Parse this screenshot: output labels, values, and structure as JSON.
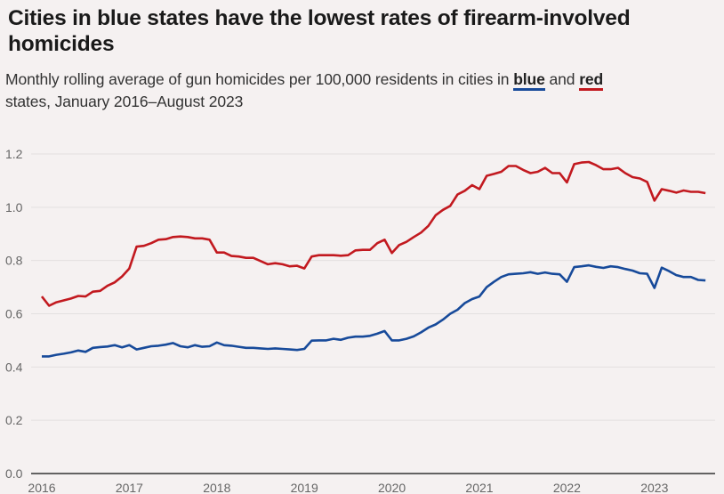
{
  "header": {
    "title": "Cities in blue states have the lowest rates of firearm-involved homicides",
    "subtitle_pre": "Monthly rolling average of gun homicides per 100,000 residents in cities in ",
    "subtitle_blue": "blue",
    "subtitle_and": " and ",
    "subtitle_red": "red",
    "subtitle_post": " states, January 2016–August 2023"
  },
  "colors": {
    "blue": "#174a9a",
    "red": "#c2191f",
    "background": "#f5f1f1",
    "grid": "#e3e0e0",
    "axis": "#333333"
  },
  "chart_data": {
    "type": "line",
    "title": "Cities in blue states have the lowest rates of firearm-involved homicides",
    "subtitle": "Monthly rolling average of gun homicides per 100,000 residents in cities in blue and red states, January 2016–August 2023",
    "xlabel": "",
    "ylabel": "",
    "x_start": "2016-01",
    "x_end": "2023-08",
    "x_frequency": "monthly",
    "x_ticks": [
      "2016",
      "2017",
      "2018",
      "2019",
      "2020",
      "2021",
      "2022",
      "2023"
    ],
    "y_ticks": [
      "0.0",
      "0.2",
      "0.4",
      "0.6",
      "0.8",
      "1.0",
      "1.2"
    ],
    "ylim": [
      0,
      1.2
    ],
    "grid": true,
    "legend": "inline in subtitle",
    "series": [
      {
        "name": "red",
        "color": "#c2191f",
        "values": [
          0.665,
          0.63,
          0.643,
          0.65,
          0.657,
          0.667,
          0.665,
          0.683,
          0.686,
          0.705,
          0.718,
          0.74,
          0.77,
          0.852,
          0.855,
          0.865,
          0.878,
          0.88,
          0.888,
          0.89,
          0.888,
          0.883,
          0.883,
          0.878,
          0.83,
          0.83,
          0.817,
          0.815,
          0.81,
          0.81,
          0.798,
          0.786,
          0.79,
          0.786,
          0.778,
          0.78,
          0.77,
          0.815,
          0.82,
          0.82,
          0.82,
          0.818,
          0.82,
          0.838,
          0.84,
          0.84,
          0.865,
          0.878,
          0.828,
          0.858,
          0.87,
          0.888,
          0.905,
          0.93,
          0.97,
          0.99,
          1.005,
          1.048,
          1.062,
          1.083,
          1.068,
          1.118,
          1.125,
          1.133,
          1.155,
          1.155,
          1.14,
          1.128,
          1.133,
          1.148,
          1.128,
          1.128,
          1.093,
          1.162,
          1.168,
          1.17,
          1.158,
          1.143,
          1.143,
          1.148,
          1.128,
          1.113,
          1.108,
          1.095,
          1.025,
          1.068,
          1.062,
          1.055,
          1.063,
          1.058,
          1.058,
          1.053
        ]
      },
      {
        "name": "blue",
        "color": "#174a9a",
        "values": [
          0.44,
          0.44,
          0.446,
          0.45,
          0.455,
          0.462,
          0.457,
          0.472,
          0.475,
          0.477,
          0.482,
          0.474,
          0.482,
          0.466,
          0.472,
          0.478,
          0.48,
          0.484,
          0.49,
          0.478,
          0.474,
          0.482,
          0.476,
          0.478,
          0.492,
          0.482,
          0.48,
          0.476,
          0.472,
          0.472,
          0.47,
          0.468,
          0.47,
          0.468,
          0.466,
          0.464,
          0.468,
          0.499,
          0.5,
          0.5,
          0.506,
          0.502,
          0.51,
          0.514,
          0.514,
          0.517,
          0.525,
          0.535,
          0.5,
          0.5,
          0.506,
          0.515,
          0.53,
          0.548,
          0.56,
          0.578,
          0.6,
          0.615,
          0.64,
          0.655,
          0.665,
          0.7,
          0.72,
          0.738,
          0.748,
          0.75,
          0.752,
          0.756,
          0.75,
          0.755,
          0.75,
          0.748,
          0.72,
          0.775,
          0.778,
          0.782,
          0.776,
          0.772,
          0.778,
          0.775,
          0.768,
          0.762,
          0.752,
          0.75,
          0.697,
          0.773,
          0.76,
          0.745,
          0.738,
          0.738,
          0.727,
          0.725
        ]
      }
    ]
  }
}
